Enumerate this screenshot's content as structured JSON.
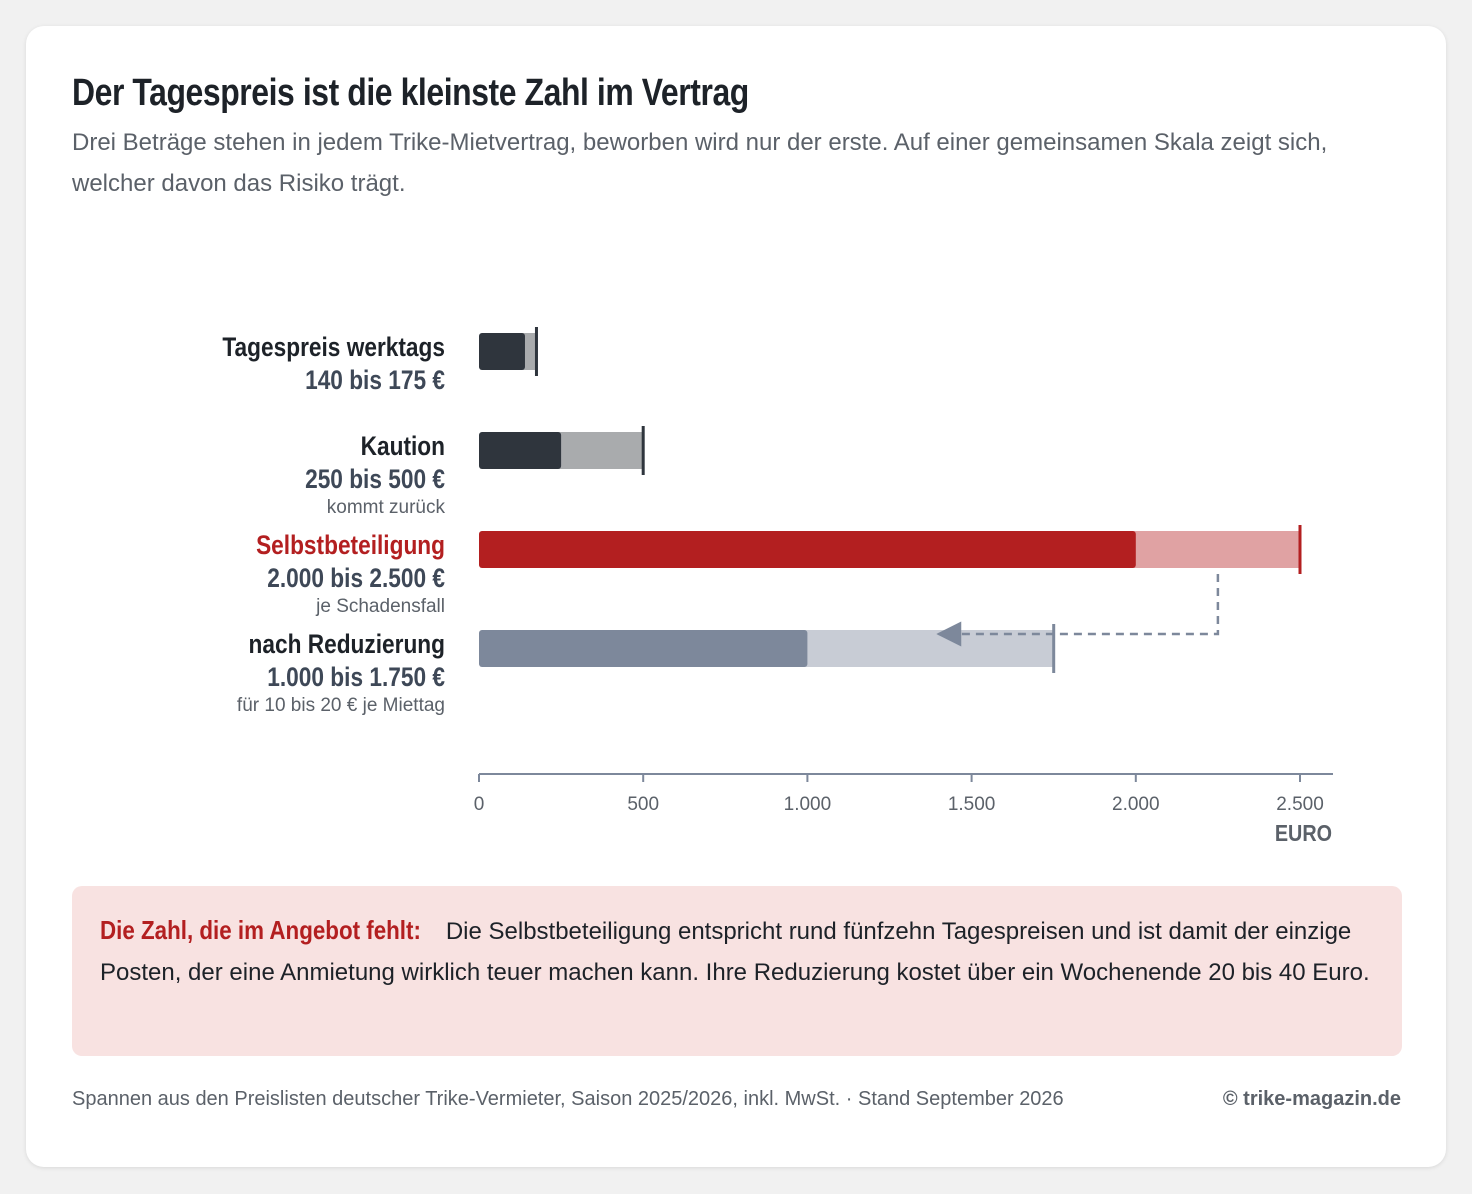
{
  "title": "Der Tagespreis ist die kleinste Zahl im Vertrag",
  "subtitle": "Drei Beträge stehen in jedem Trike-Mietvertrag, beworben wird nur der erste. Auf einer gemeinsamen Skala zeigt sich, welcher davon das Risiko trägt.",
  "chart_data": {
    "type": "bar",
    "orientation": "horizontal range bars",
    "xlabel": "EURO",
    "xlim": [
      0,
      2500
    ],
    "ticks": [
      {
        "value": 0,
        "label": "0"
      },
      {
        "value": 500,
        "label": "500"
      },
      {
        "value": 1000,
        "label": "1.000"
      },
      {
        "value": 1500,
        "label": "1.500"
      },
      {
        "value": 2000,
        "label": "2.000"
      },
      {
        "value": 2500,
        "label": "2.500"
      }
    ],
    "rows": [
      {
        "name": "Tagespreis werktags",
        "range_label": "140 bis 175 €",
        "note": "",
        "min": 140,
        "max": 175,
        "dark": "#2f353d",
        "light": "#a9abad",
        "tick": "#2f353d",
        "name_color": "#1d2228"
      },
      {
        "name": "Kaution",
        "range_label": "250 bis 500 €",
        "note": "kommt zurück",
        "min": 250,
        "max": 500,
        "dark": "#2f353d",
        "light": "#a9abad",
        "tick": "#2f353d",
        "name_color": "#1d2228"
      },
      {
        "name": "Selbstbeteiligung",
        "range_label": "2.000 bis 2.500 €",
        "note": "je Schadensfall",
        "min": 2000,
        "max": 2500,
        "dark": "#b31f20",
        "light": "#e0a2a3",
        "tick": "#b31f20",
        "name_color": "#b31f20"
      },
      {
        "name": "nach Reduzierung",
        "range_label": "1.000 bis 1.750 €",
        "note": "für 10 bis 20 € je Miettag",
        "min": 1000,
        "max": 1750,
        "dark": "#7d889b",
        "light": "#c8ccd5",
        "tick": "#7d889b",
        "name_color": "#1d2228"
      }
    ],
    "arrow": {
      "from_row": 2,
      "to_row": 3,
      "at_value": 2250,
      "to_value": 1400
    }
  },
  "callout": {
    "lead": "Die Zahl, die im Angebot fehlt:",
    "text": " Die Selbstbeteiligung entspricht rund fünfzehn Tagespreisen und ist damit der einzige Posten, der eine Anmietung wirklich teuer machen kann. Ihre Reduzierung kostet über ein Wochenende 20 bis 40 Euro."
  },
  "footer": {
    "source": "Spannen aus den Preislisten deutscher Trike-Vermieter, Saison 2025/2026, inkl. MwSt. · Stand September 2026",
    "credit": "© trike-magazin.de"
  },
  "colors": {
    "accent": "#b31f20",
    "text": "#1d2228",
    "muted": "#5b6169",
    "axis": "#7d889b",
    "callout_bg": "#f8e2e1"
  }
}
